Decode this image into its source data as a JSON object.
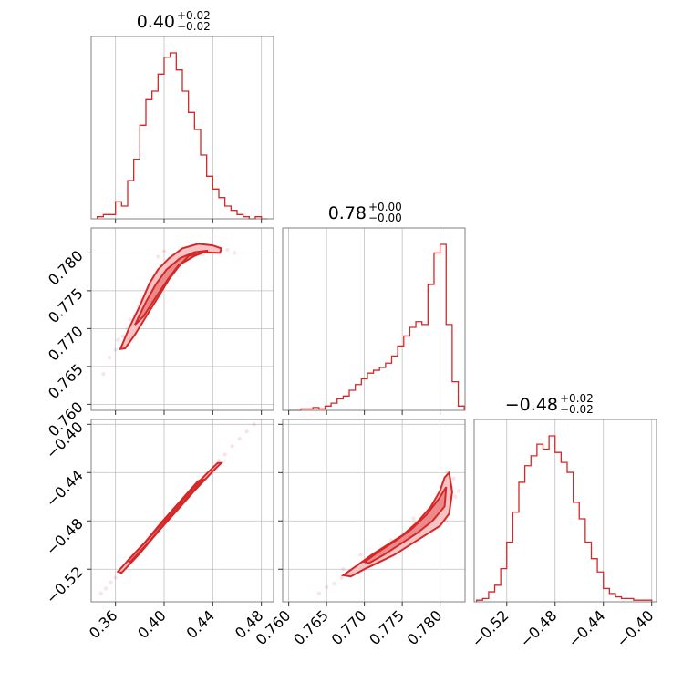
{
  "colors": {
    "accent": "#d62728",
    "grid": "#bfbfbf",
    "frame": "#808080"
  },
  "chart_data": {
    "type": "corner",
    "grid": true,
    "parameters": [
      {
        "title_value": "0.40",
        "title_plus": "+0.02",
        "title_minus": "−0.02",
        "range": [
          0.34,
          0.49
        ],
        "ticks": [
          0.36,
          0.4,
          0.44,
          0.48
        ],
        "tick_labels": [
          "0.36",
          "0.40",
          "0.44",
          "0.48"
        ]
      },
      {
        "title_value": "0.78",
        "title_plus": "+0.00",
        "title_minus": "−0.00",
        "range": [
          0.7592,
          0.7833
        ],
        "ticks": [
          0.76,
          0.765,
          0.77,
          0.775,
          0.78
        ],
        "tick_labels": [
          "0.760",
          "0.765",
          "0.770",
          "0.775",
          "0.780"
        ]
      },
      {
        "title_value": "−0.48",
        "title_plus": "+0.02",
        "title_minus": "−0.02",
        "range": [
          -0.547,
          -0.396
        ],
        "ticks": [
          -0.52,
          -0.48,
          -0.44,
          -0.4
        ],
        "tick_labels": [
          "−0.52",
          "−0.48",
          "−0.44",
          "−0.40"
        ]
      }
    ],
    "histograms": [
      {
        "param": 0,
        "bins": [
          0.345,
          0.35,
          0.355,
          0.36,
          0.365,
          0.37,
          0.375,
          0.38,
          0.385,
          0.39,
          0.395,
          0.4,
          0.405,
          0.41,
          0.415,
          0.42,
          0.425,
          0.43,
          0.435,
          0.44,
          0.445,
          0.45,
          0.455,
          0.46,
          0.465,
          0.47,
          0.475,
          0.48,
          0.485
        ],
        "counts": [
          1,
          2,
          2,
          8,
          6,
          18,
          28,
          44,
          56,
          60,
          68,
          76,
          78,
          70,
          60,
          50,
          42,
          30,
          20,
          14,
          10,
          6,
          4,
          2,
          1,
          0,
          1,
          0
        ]
      },
      {
        "param": 1,
        "bins": [
          0.76,
          0.7608,
          0.7616,
          0.7624,
          0.7632,
          0.764,
          0.7648,
          0.7656,
          0.7664,
          0.7672,
          0.768,
          0.7688,
          0.7696,
          0.7704,
          0.7712,
          0.772,
          0.7728,
          0.7736,
          0.7744,
          0.7752,
          0.776,
          0.7768,
          0.7776,
          0.7784,
          0.7792,
          0.78,
          0.7808,
          0.7816,
          0.7824,
          0.7832
        ],
        "counts": [
          0,
          0,
          1,
          1,
          2,
          1,
          3,
          5,
          8,
          10,
          14,
          18,
          22,
          26,
          28,
          30,
          33,
          38,
          45,
          52,
          58,
          62,
          60,
          88,
          110,
          116,
          60,
          20,
          3
        ]
      },
      {
        "param": 2,
        "bins": [
          -0.545,
          -0.54,
          -0.535,
          -0.53,
          -0.525,
          -0.52,
          -0.515,
          -0.51,
          -0.505,
          -0.5,
          -0.495,
          -0.49,
          -0.485,
          -0.48,
          -0.475,
          -0.47,
          -0.465,
          -0.46,
          -0.455,
          -0.45,
          -0.445,
          -0.44,
          -0.435,
          -0.43,
          -0.425,
          -0.42,
          -0.415,
          -0.41,
          -0.405,
          -0.4
        ],
        "counts": [
          1,
          2,
          6,
          10,
          20,
          36,
          54,
          72,
          82,
          88,
          95,
          92,
          100,
          90,
          84,
          78,
          60,
          50,
          36,
          26,
          18,
          8,
          5,
          3,
          2,
          2,
          1,
          1,
          1
        ]
      }
    ],
    "scatter_panels": [
      {
        "x_param": 0,
        "y_param": 1,
        "samples": [
          [
            0.355,
            0.7662
          ],
          [
            0.36,
            0.7672
          ],
          [
            0.362,
            0.7685
          ],
          [
            0.366,
            0.769
          ],
          [
            0.37,
            0.77
          ],
          [
            0.372,
            0.7712
          ],
          [
            0.376,
            0.7718
          ],
          [
            0.379,
            0.773
          ],
          [
            0.382,
            0.7738
          ],
          [
            0.385,
            0.7748
          ],
          [
            0.388,
            0.7758
          ],
          [
            0.391,
            0.7765
          ],
          [
            0.394,
            0.7772
          ],
          [
            0.398,
            0.778
          ],
          [
            0.402,
            0.7788
          ],
          [
            0.406,
            0.7793
          ],
          [
            0.41,
            0.7798
          ],
          [
            0.415,
            0.7802
          ],
          [
            0.42,
            0.7805
          ],
          [
            0.428,
            0.7808
          ],
          [
            0.436,
            0.7808
          ],
          [
            0.445,
            0.7806
          ],
          [
            0.452,
            0.7804
          ],
          [
            0.458,
            0.78
          ],
          [
            0.368,
            0.7682
          ],
          [
            0.38,
            0.7722
          ],
          [
            0.392,
            0.7758
          ],
          [
            0.405,
            0.7776
          ],
          [
            0.418,
            0.779
          ],
          [
            0.432,
            0.7798
          ],
          [
            0.35,
            0.764
          ],
          [
            0.395,
            0.7795
          ],
          [
            0.4,
            0.7802
          ]
        ],
        "contour_outer": [
          [
            0.364,
            0.7673
          ],
          [
            0.371,
            0.77
          ],
          [
            0.38,
            0.773
          ],
          [
            0.388,
            0.776
          ],
          [
            0.395,
            0.7778
          ],
          [
            0.404,
            0.7793
          ],
          [
            0.415,
            0.7806
          ],
          [
            0.428,
            0.7812
          ],
          [
            0.44,
            0.781
          ],
          [
            0.447,
            0.7806
          ],
          [
            0.446,
            0.78
          ],
          [
            0.432,
            0.7801
          ],
          [
            0.42,
            0.7796
          ],
          [
            0.412,
            0.7782
          ],
          [
            0.404,
            0.7765
          ],
          [
            0.396,
            0.7744
          ],
          [
            0.386,
            0.7718
          ],
          [
            0.376,
            0.7692
          ],
          [
            0.368,
            0.7674
          ]
        ],
        "contour_inner": [
          [
            0.376,
            0.7705
          ],
          [
            0.385,
            0.7735
          ],
          [
            0.393,
            0.7758
          ],
          [
            0.402,
            0.7778
          ],
          [
            0.413,
            0.7793
          ],
          [
            0.425,
            0.7801
          ],
          [
            0.436,
            0.7803
          ],
          [
            0.425,
            0.7796
          ],
          [
            0.412,
            0.7784
          ],
          [
            0.403,
            0.7765
          ],
          [
            0.393,
            0.7741
          ],
          [
            0.383,
            0.7716
          ]
        ]
      },
      {
        "x_param": 0,
        "y_param": 2,
        "samples": [
          [
            0.348,
            -0.54
          ],
          [
            0.352,
            -0.536
          ],
          [
            0.356,
            -0.531
          ],
          [
            0.36,
            -0.527
          ],
          [
            0.365,
            -0.521
          ],
          [
            0.37,
            -0.515
          ],
          [
            0.375,
            -0.51
          ],
          [
            0.38,
            -0.504
          ],
          [
            0.385,
            -0.498
          ],
          [
            0.39,
            -0.492
          ],
          [
            0.395,
            -0.486
          ],
          [
            0.4,
            -0.481
          ],
          [
            0.405,
            -0.475
          ],
          [
            0.41,
            -0.469
          ],
          [
            0.415,
            -0.464
          ],
          [
            0.42,
            -0.458
          ],
          [
            0.425,
            -0.452
          ],
          [
            0.43,
            -0.447
          ],
          [
            0.435,
            -0.441
          ],
          [
            0.44,
            -0.436
          ],
          [
            0.445,
            -0.43
          ],
          [
            0.45,
            -0.425
          ],
          [
            0.456,
            -0.418
          ],
          [
            0.462,
            -0.412
          ],
          [
            0.468,
            -0.406
          ],
          [
            0.474,
            -0.4
          ]
        ],
        "contour_outer": [
          [
            0.365,
            -0.523
          ],
          [
            0.38,
            -0.507
          ],
          [
            0.395,
            -0.489
          ],
          [
            0.41,
            -0.472
          ],
          [
            0.425,
            -0.455
          ],
          [
            0.44,
            -0.439
          ],
          [
            0.447,
            -0.432
          ],
          [
            0.444,
            -0.432
          ],
          [
            0.43,
            -0.446
          ],
          [
            0.415,
            -0.463
          ],
          [
            0.4,
            -0.48
          ],
          [
            0.385,
            -0.497
          ],
          [
            0.37,
            -0.513
          ],
          [
            0.362,
            -0.522
          ]
        ],
        "contour_inner": [
          [
            0.372,
            -0.514
          ],
          [
            0.388,
            -0.497
          ],
          [
            0.402,
            -0.48
          ],
          [
            0.418,
            -0.462
          ],
          [
            0.432,
            -0.446
          ],
          [
            0.428,
            -0.447
          ],
          [
            0.413,
            -0.464
          ],
          [
            0.398,
            -0.481
          ],
          [
            0.384,
            -0.498
          ],
          [
            0.37,
            -0.513
          ]
        ]
      },
      {
        "x_param": 1,
        "y_param": 2,
        "samples": [
          [
            0.764,
            -0.54
          ],
          [
            0.765,
            -0.535
          ],
          [
            0.766,
            -0.532
          ],
          [
            0.767,
            -0.527
          ],
          [
            0.768,
            -0.522
          ],
          [
            0.769,
            -0.518
          ],
          [
            0.77,
            -0.514
          ],
          [
            0.771,
            -0.51
          ],
          [
            0.772,
            -0.506
          ],
          [
            0.773,
            -0.502
          ],
          [
            0.774,
            -0.498
          ],
          [
            0.775,
            -0.493
          ],
          [
            0.776,
            -0.488
          ],
          [
            0.777,
            -0.482
          ],
          [
            0.778,
            -0.475
          ],
          [
            0.779,
            -0.467
          ],
          [
            0.78,
            -0.458
          ],
          [
            0.7806,
            -0.449
          ],
          [
            0.781,
            -0.44
          ],
          [
            0.7815,
            -0.452
          ],
          [
            0.782,
            -0.46
          ],
          [
            0.7812,
            -0.47
          ],
          [
            0.7808,
            -0.48
          ],
          [
            0.7825,
            -0.455
          ],
          [
            0.7818,
            -0.445
          ],
          [
            0.7672,
            -0.52
          ],
          [
            0.7695,
            -0.508
          ],
          [
            0.7735,
            -0.496
          ],
          [
            0.7765,
            -0.478
          ]
        ],
        "contour_outer": [
          [
            0.7672,
            -0.525
          ],
          [
            0.769,
            -0.517
          ],
          [
            0.771,
            -0.508
          ],
          [
            0.773,
            -0.5
          ],
          [
            0.775,
            -0.492
          ],
          [
            0.777,
            -0.481
          ],
          [
            0.7788,
            -0.468
          ],
          [
            0.78,
            -0.455
          ],
          [
            0.7806,
            -0.444
          ],
          [
            0.7812,
            -0.44
          ],
          [
            0.7816,
            -0.456
          ],
          [
            0.7812,
            -0.474
          ],
          [
            0.78,
            -0.484
          ],
          [
            0.778,
            -0.492
          ],
          [
            0.776,
            -0.5
          ],
          [
            0.774,
            -0.508
          ],
          [
            0.772,
            -0.514
          ],
          [
            0.77,
            -0.52
          ],
          [
            0.7682,
            -0.526
          ]
        ],
        "contour_inner": [
          [
            0.77,
            -0.514
          ],
          [
            0.772,
            -0.505
          ],
          [
            0.7742,
            -0.496
          ],
          [
            0.7762,
            -0.487
          ],
          [
            0.7782,
            -0.475
          ],
          [
            0.7798,
            -0.462
          ],
          [
            0.7808,
            -0.452
          ],
          [
            0.7806,
            -0.468
          ],
          [
            0.779,
            -0.48
          ],
          [
            0.777,
            -0.49
          ],
          [
            0.7748,
            -0.499
          ],
          [
            0.7726,
            -0.508
          ],
          [
            0.7706,
            -0.515
          ]
        ]
      }
    ]
  }
}
